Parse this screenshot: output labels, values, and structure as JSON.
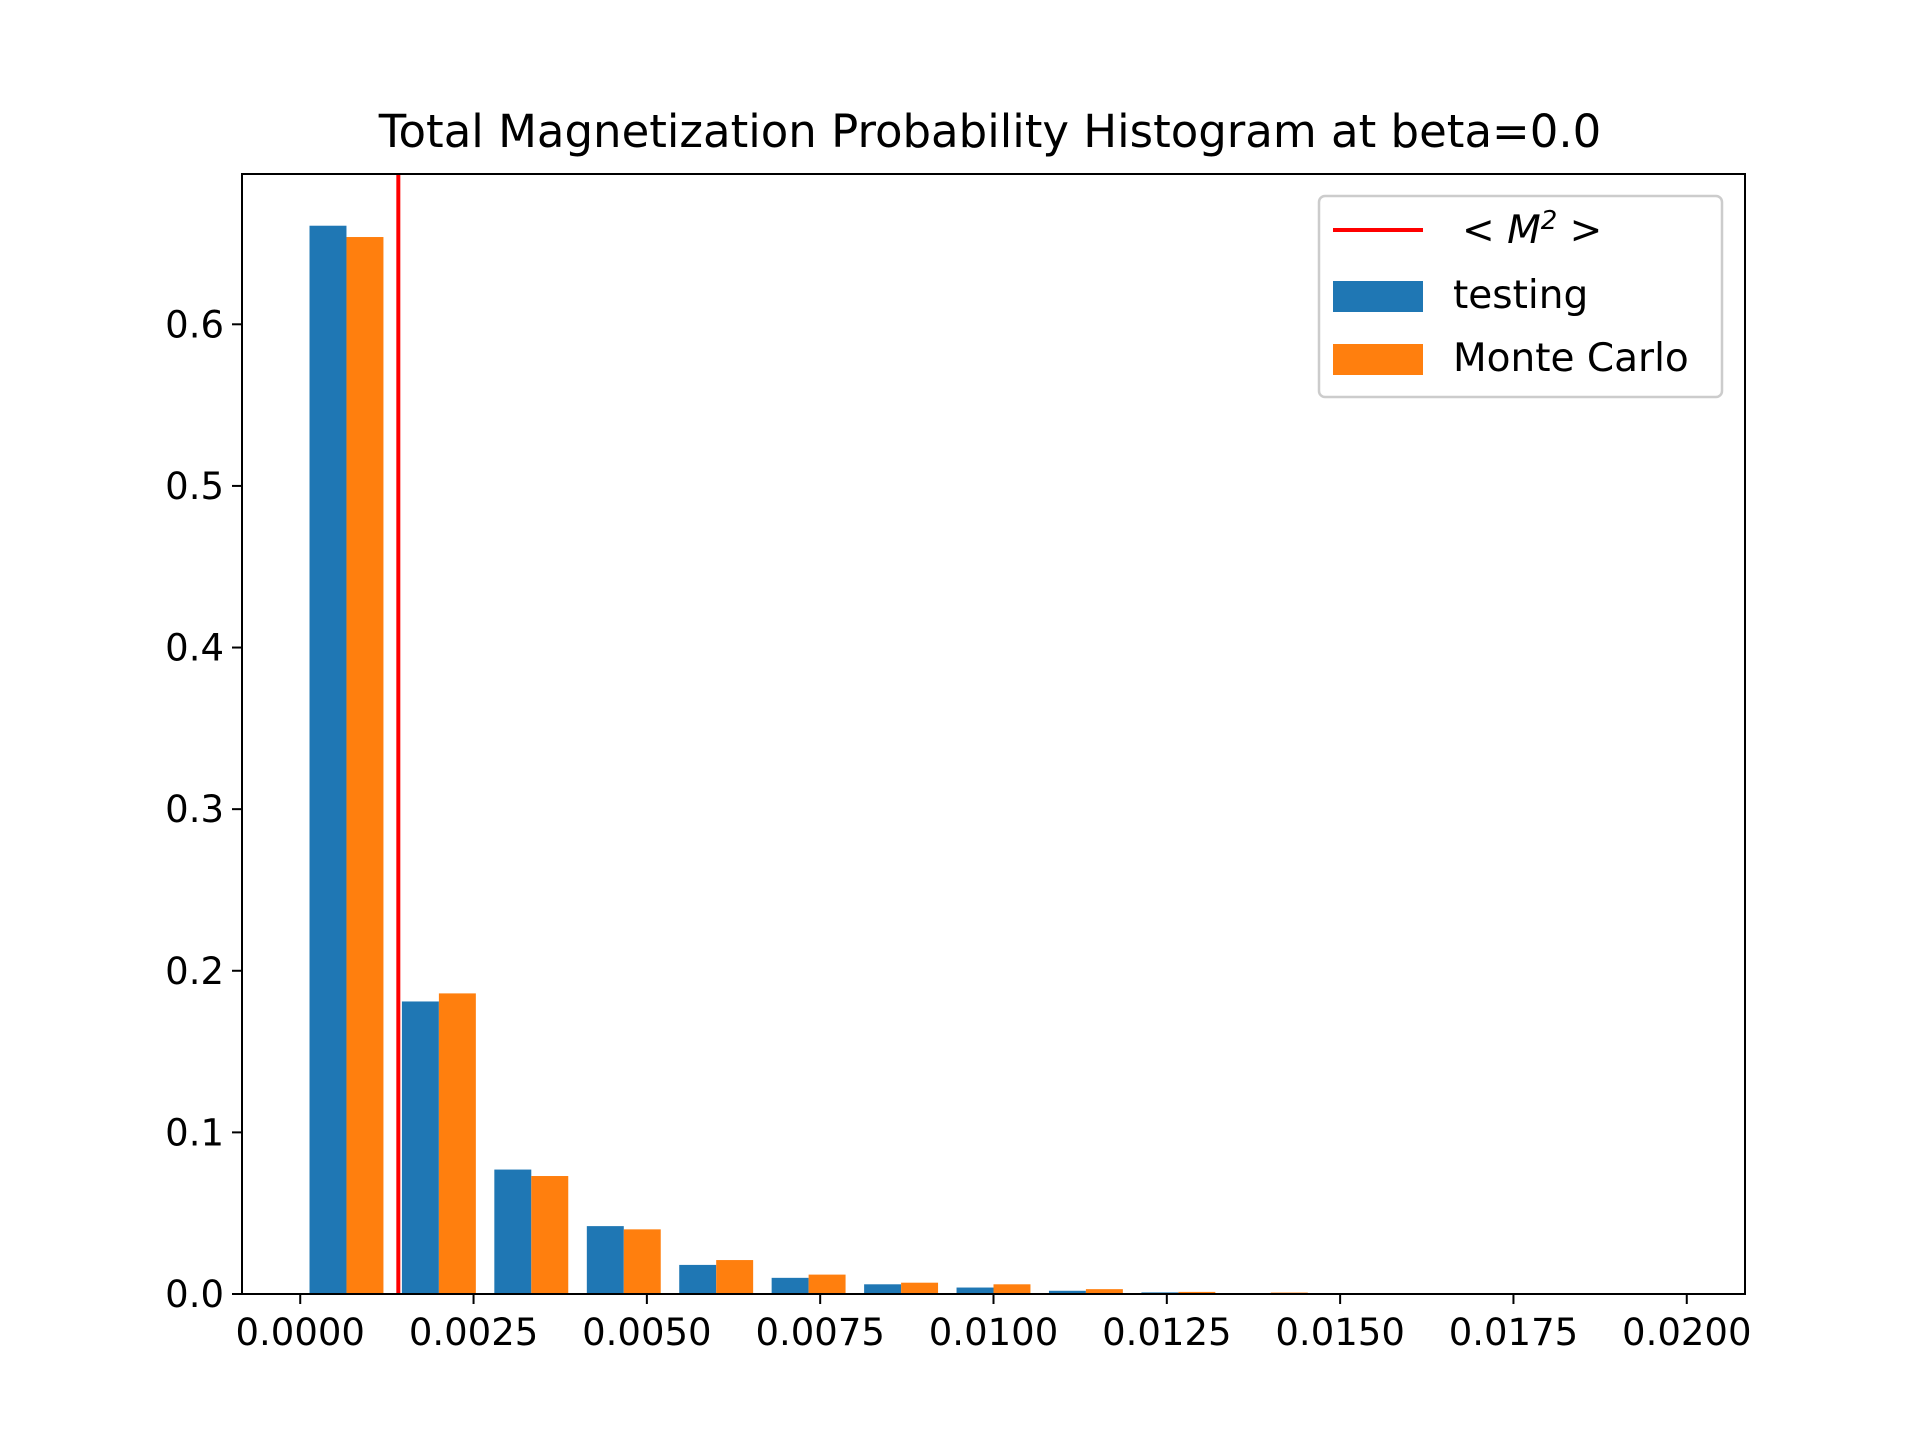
{
  "chart_data": {
    "type": "bar",
    "title": "Total Magnetization Probability Histogram at beta=0.0",
    "xlabel": "",
    "ylabel": "",
    "xlim": [
      -0.00084,
      0.02084
    ],
    "ylim": [
      0,
      0.693
    ],
    "grid": false,
    "legend_position": "top-right",
    "bin_centers": [
      0.000667,
      0.002,
      0.003333,
      0.004667,
      0.006,
      0.007333,
      0.008667,
      0.01,
      0.011333,
      0.012667,
      0.014,
      0.015333,
      0.016667,
      0.018,
      0.019333
    ],
    "series": [
      {
        "name": "testing",
        "color": "#1f77b4",
        "values": [
          0.661,
          0.181,
          0.077,
          0.042,
          0.018,
          0.01,
          0.006,
          0.004,
          0.002,
          0.001,
          0.0005,
          0,
          0,
          0,
          0
        ]
      },
      {
        "name": "Monte Carlo",
        "color": "#ff7f0e",
        "values": [
          0.654,
          0.186,
          0.073,
          0.04,
          0.021,
          0.012,
          0.007,
          0.006,
          0.003,
          0.0013,
          0.0009,
          0,
          0,
          0,
          0
        ]
      }
    ],
    "vline": {
      "x": 0.001415,
      "color": "#ff0000",
      "legend_base": "< M",
      "legend_sup": "2",
      "legend_close": " >"
    },
    "x_ticks": [
      {
        "value": 0.0,
        "label": "0.0000"
      },
      {
        "value": 0.0025,
        "label": "0.0025"
      },
      {
        "value": 0.005,
        "label": "0.0050"
      },
      {
        "value": 0.0075,
        "label": "0.0075"
      },
      {
        "value": 0.01,
        "label": "0.0100"
      },
      {
        "value": 0.0125,
        "label": "0.0125"
      },
      {
        "value": 0.015,
        "label": "0.0150"
      },
      {
        "value": 0.0175,
        "label": "0.0175"
      },
      {
        "value": 0.02,
        "label": "0.0200"
      }
    ],
    "y_ticks": [
      {
        "value": 0.0,
        "label": "0.0"
      },
      {
        "value": 0.1,
        "label": "0.1"
      },
      {
        "value": 0.2,
        "label": "0.2"
      },
      {
        "value": 0.3,
        "label": "0.3"
      },
      {
        "value": 0.4,
        "label": "0.4"
      },
      {
        "value": 0.5,
        "label": "0.5"
      },
      {
        "value": 0.6,
        "label": "0.6"
      }
    ]
  }
}
